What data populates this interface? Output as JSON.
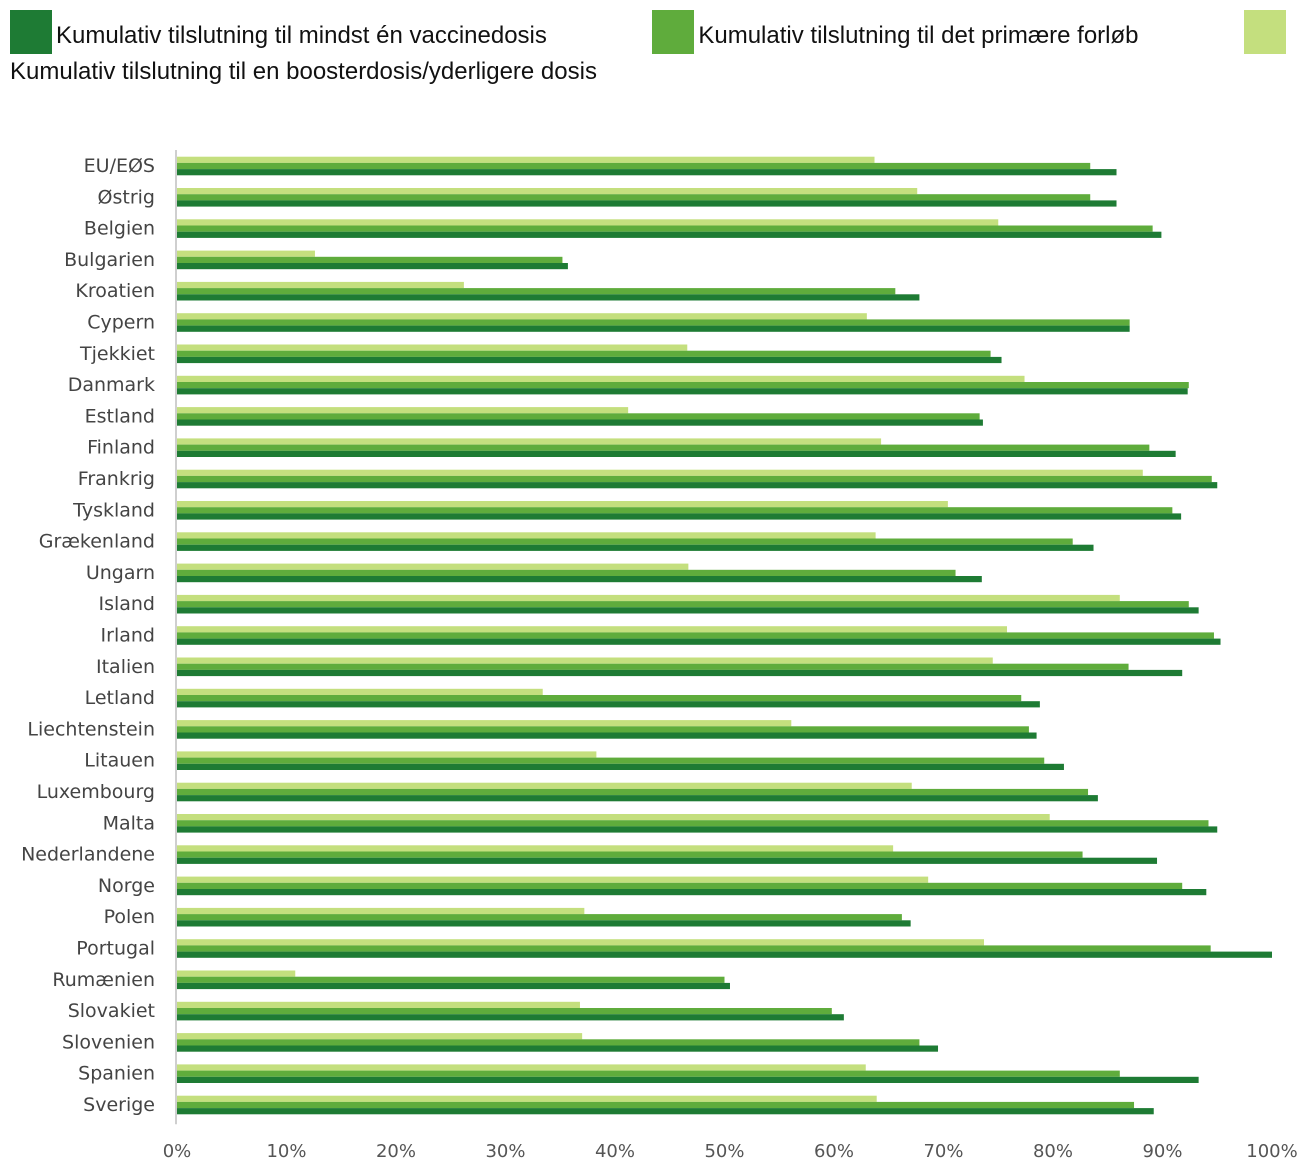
{
  "chart_data": {
    "type": "bar",
    "orientation": "horizontal",
    "categories": [
      "EU/EØS",
      "Østrig",
      "Belgien",
      "Bulgarien",
      "Kroatien",
      "Cypern",
      "Tjekkiet",
      "Danmark",
      "Estland",
      "Finland",
      "Frankrig",
      "Tyskland",
      "Grækenland",
      "Ungarn",
      "Island",
      "Irland",
      "Italien",
      "Letland",
      "Liechtenstein",
      "Litauen",
      "Luxembourg",
      "Malta",
      "Nederlandene",
      "Norge",
      "Polen",
      "Portugal",
      "Rumænien",
      "Slovakiet",
      "Slovenien",
      "Spanien",
      "Sverige"
    ],
    "series": [
      {
        "name": "Kumulativ tilslutning til mindst én vaccinedosis",
        "color": "#1e7b34",
        "values": [
          85.8,
          85.8,
          89.9,
          35.7,
          67.8,
          87.0,
          75.3,
          92.3,
          73.6,
          91.2,
          95.0,
          91.7,
          83.7,
          73.5,
          93.3,
          95.3,
          91.8,
          78.8,
          78.5,
          81.0,
          84.1,
          95.0,
          89.5,
          94.0,
          67.0,
          100.0,
          50.5,
          60.9,
          69.5,
          93.3,
          89.2
        ]
      },
      {
        "name": "Kumulativ tilslutning til det primære forløb",
        "color": "#5fac3c",
        "values": [
          83.4,
          83.4,
          89.1,
          35.2,
          65.6,
          87.0,
          74.3,
          92.4,
          73.3,
          88.8,
          94.5,
          90.9,
          81.8,
          71.1,
          92.4,
          94.7,
          86.9,
          77.1,
          77.8,
          79.2,
          83.2,
          94.2,
          82.7,
          91.8,
          66.2,
          94.4,
          50.0,
          59.8,
          67.8,
          86.1,
          87.4
        ]
      },
      {
        "name": "Kumulativ tilslutning til en boosterdosis/yderligere dosis",
        "color": "#c4df7e",
        "values": [
          63.7,
          67.6,
          75.0,
          12.6,
          26.2,
          63.0,
          46.6,
          77.4,
          41.2,
          64.3,
          88.2,
          70.4,
          63.8,
          46.7,
          86.1,
          75.8,
          74.5,
          33.4,
          56.1,
          38.3,
          67.1,
          79.7,
          65.4,
          68.6,
          37.2,
          73.7,
          10.8,
          36.8,
          37.0,
          62.9,
          63.9
        ]
      }
    ],
    "xlim": [
      0,
      100
    ],
    "x_ticks": [
      "0%",
      "10%",
      "20%",
      "30%",
      "40%",
      "50%",
      "60%",
      "70%",
      "80%",
      "90%",
      "100%"
    ],
    "grid": false,
    "legend_position": "top"
  }
}
